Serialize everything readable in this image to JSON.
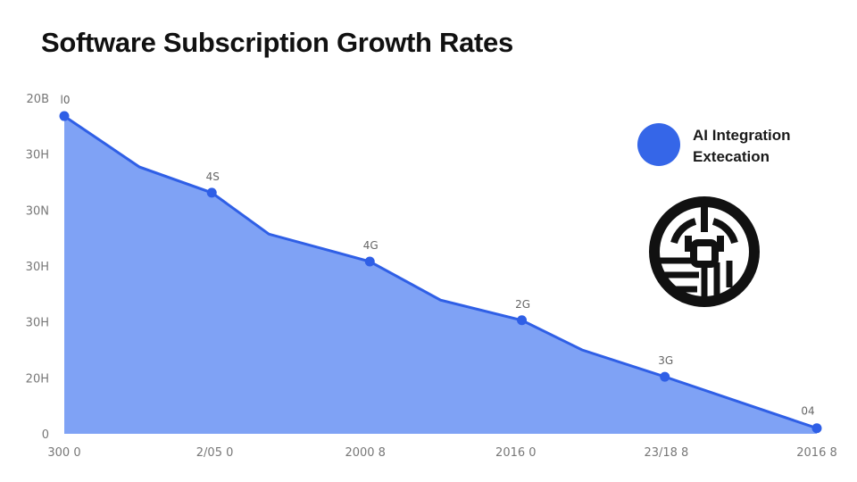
{
  "chart_data": {
    "type": "area",
    "title": "Software Subscription Growth Rates",
    "xlabel": "",
    "ylabel": "",
    "x_tick_labels": [
      "300 0",
      "2/05 0",
      "2000 8",
      "2016 0",
      "23/18 8",
      "2016 8"
    ],
    "y_tick_labels": [
      "0",
      "20H",
      "30H",
      "30H",
      "30N",
      "30H",
      "20B"
    ],
    "ylim": [
      0,
      6
    ],
    "xlim": [
      0,
      5
    ],
    "series": [
      {
        "name": "AI Integration Extecation",
        "color": "#2f5fe6",
        "fill": "#7fa2f5",
        "x": [
          0,
          0.5,
          0.98,
          1.36,
          2.03,
          2.5,
          3.04,
          3.44,
          3.99,
          5
        ],
        "y": [
          5.68,
          4.77,
          4.31,
          3.57,
          3.08,
          2.39,
          2.03,
          1.5,
          1.02,
          0.1
        ]
      }
    ],
    "markers": [
      {
        "x": 0,
        "y": 5.68,
        "label": "l0"
      },
      {
        "x": 0.98,
        "y": 4.31,
        "label": "4S"
      },
      {
        "x": 2.03,
        "y": 3.08,
        "label": "4G"
      },
      {
        "x": 3.04,
        "y": 2.03,
        "label": "2G"
      },
      {
        "x": 3.99,
        "y": 1.02,
        "label": "3G"
      },
      {
        "x": 5,
        "y": 0.1,
        "label": "04"
      }
    ],
    "legend": {
      "position": "top-right",
      "line1": "AI Integration",
      "line2": "Extecation"
    },
    "grid": false
  }
}
